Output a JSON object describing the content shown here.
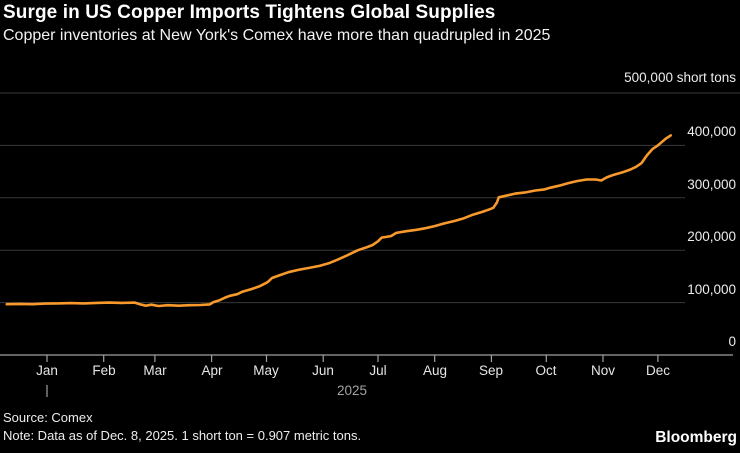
{
  "header": {
    "title": "Surge in US Copper Imports Tightens Global Supplies",
    "subtitle": "Copper inventories at New York's Comex have more than quadrupled in 2025"
  },
  "footer": {
    "source": "Source: Comex",
    "note": "Note: Data as of Dec. 8, 2025. 1 short ton = 0.907 metric tons.",
    "brand": "Bloomberg"
  },
  "colors": {
    "background": "#000000",
    "line": "#F8992B",
    "grid": "#383838",
    "axis": "#A0A0A0",
    "text": "#ECECEC"
  },
  "chart_data": {
    "type": "line",
    "title": "Surge in US Copper Imports Tightens Global Supplies",
    "subtitle": "Copper inventories at New York's Comex have more than quadrupled in 2025",
    "unit_label": "500,000 short tons",
    "ylabel": "short tons",
    "ylim": [
      0,
      500000
    ],
    "grid": true,
    "legend": "none",
    "year_label": "2025",
    "year_tick_date": "2025-01-01",
    "x_range": [
      "2024-12-10",
      "2025-12-08"
    ],
    "yticks": [
      {
        "value": 0,
        "label": "0"
      },
      {
        "value": 100000,
        "label": "100,000"
      },
      {
        "value": 200000,
        "label": "200,000"
      },
      {
        "value": 300000,
        "label": "300,000"
      },
      {
        "value": 400000,
        "label": "400,000"
      }
    ],
    "ytop": {
      "value": 500000
    },
    "xticks": [
      {
        "label": "Jan",
        "date": "2025-01-01"
      },
      {
        "label": "Feb",
        "date": "2025-02-01"
      },
      {
        "label": "Mar",
        "date": "2025-03-01"
      },
      {
        "label": "Apr",
        "date": "2025-04-01"
      },
      {
        "label": "May",
        "date": "2025-05-01"
      },
      {
        "label": "Jun",
        "date": "2025-06-01"
      },
      {
        "label": "Jul",
        "date": "2025-07-01"
      },
      {
        "label": "Aug",
        "date": "2025-08-01"
      },
      {
        "label": "Sep",
        "date": "2025-09-01"
      },
      {
        "label": "Oct",
        "date": "2025-10-01"
      },
      {
        "label": "Nov",
        "date": "2025-11-01"
      },
      {
        "label": "Dec",
        "date": "2025-12-01"
      }
    ],
    "series": [
      {
        "name": "Comex copper inventories (short tons)",
        "color": "#F8992B",
        "points": [
          [
            "2024-12-10",
            97000
          ],
          [
            "2024-12-17",
            97500
          ],
          [
            "2024-12-24",
            97000
          ],
          [
            "2024-12-31",
            98000
          ],
          [
            "2025-01-07",
            98500
          ],
          [
            "2025-01-14",
            99000
          ],
          [
            "2025-01-21",
            98500
          ],
          [
            "2025-01-28",
            99500
          ],
          [
            "2025-02-04",
            100000
          ],
          [
            "2025-02-11",
            99500
          ],
          [
            "2025-02-18",
            100000
          ],
          [
            "2025-02-21",
            96500
          ],
          [
            "2025-02-24",
            94000
          ],
          [
            "2025-02-27",
            96000
          ],
          [
            "2025-03-03",
            93500
          ],
          [
            "2025-03-08",
            95000
          ],
          [
            "2025-03-14",
            94000
          ],
          [
            "2025-03-20",
            95000
          ],
          [
            "2025-03-26",
            95500
          ],
          [
            "2025-03-31",
            96500
          ],
          [
            "2025-04-02",
            101000
          ],
          [
            "2025-04-05",
            104000
          ],
          [
            "2025-04-08",
            109000
          ],
          [
            "2025-04-11",
            113000
          ],
          [
            "2025-04-15",
            116000
          ],
          [
            "2025-04-18",
            121000
          ],
          [
            "2025-04-23",
            126000
          ],
          [
            "2025-04-27",
            131000
          ],
          [
            "2025-04-30",
            136000
          ],
          [
            "2025-05-02",
            140000
          ],
          [
            "2025-05-04",
            147000
          ],
          [
            "2025-05-08",
            152000
          ],
          [
            "2025-05-13",
            158000
          ],
          [
            "2025-05-19",
            163000
          ],
          [
            "2025-05-24",
            166000
          ],
          [
            "2025-05-30",
            170000
          ],
          [
            "2025-06-04",
            175000
          ],
          [
            "2025-06-09",
            182000
          ],
          [
            "2025-06-14",
            190000
          ],
          [
            "2025-06-20",
            200000
          ],
          [
            "2025-06-25",
            206000
          ],
          [
            "2025-06-28",
            210000
          ],
          [
            "2025-07-01",
            217000
          ],
          [
            "2025-07-03",
            224000
          ],
          [
            "2025-07-08",
            227000
          ],
          [
            "2025-07-11",
            233000
          ],
          [
            "2025-07-16",
            236000
          ],
          [
            "2025-07-22",
            239000
          ],
          [
            "2025-07-27",
            242000
          ],
          [
            "2025-08-01",
            246000
          ],
          [
            "2025-08-06",
            251000
          ],
          [
            "2025-08-12",
            256000
          ],
          [
            "2025-08-17",
            261000
          ],
          [
            "2025-08-22",
            268000
          ],
          [
            "2025-08-27",
            273000
          ],
          [
            "2025-08-31",
            278000
          ],
          [
            "2025-09-02",
            281000
          ],
          [
            "2025-09-04",
            291000
          ],
          [
            "2025-09-05",
            301000
          ],
          [
            "2025-09-09",
            304000
          ],
          [
            "2025-09-14",
            308000
          ],
          [
            "2025-09-19",
            310000
          ],
          [
            "2025-09-25",
            314000
          ],
          [
            "2025-09-30",
            316000
          ],
          [
            "2025-10-03",
            319000
          ],
          [
            "2025-10-08",
            323000
          ],
          [
            "2025-10-13",
            328000
          ],
          [
            "2025-10-18",
            332000
          ],
          [
            "2025-10-23",
            335000
          ],
          [
            "2025-10-28",
            335000
          ],
          [
            "2025-10-31",
            333000
          ],
          [
            "2025-11-03",
            339000
          ],
          [
            "2025-11-07",
            344000
          ],
          [
            "2025-11-12",
            349000
          ],
          [
            "2025-11-16",
            354000
          ],
          [
            "2025-11-19",
            359000
          ],
          [
            "2025-11-22",
            366000
          ],
          [
            "2025-11-25",
            381000
          ],
          [
            "2025-11-28",
            393000
          ],
          [
            "2025-12-01",
            400000
          ],
          [
            "2025-12-03",
            406000
          ],
          [
            "2025-12-05",
            412000
          ],
          [
            "2025-12-08",
            419000
          ]
        ]
      }
    ]
  }
}
